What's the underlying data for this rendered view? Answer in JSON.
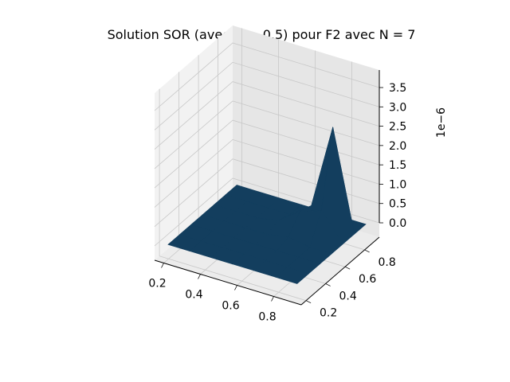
{
  "chart_data": {
    "type": "surface",
    "title": "Solution SOR (avec w = 0.5) pour F2 avec N = 7",
    "xlabel": "",
    "ylabel": "",
    "zlabel": "",
    "z_offset_label": "1e−6",
    "x_ticks": [
      "0.2",
      "0.4",
      "0.6",
      "0.8"
    ],
    "y_ticks": [
      "0.2",
      "0.4",
      "0.6",
      "0.8"
    ],
    "z_ticks": [
      "0.0",
      "0.5",
      "1.0",
      "1.5",
      "2.0",
      "2.5",
      "3.0",
      "3.5"
    ],
    "x": [
      0.125,
      0.25,
      0.375,
      0.5,
      0.625,
      0.75,
      0.875
    ],
    "y": [
      0.125,
      0.25,
      0.375,
      0.5,
      0.625,
      0.75,
      0.875
    ],
    "z": [
      [
        0,
        0,
        0,
        0,
        0,
        0,
        0
      ],
      [
        0,
        0,
        0,
        0,
        0,
        0,
        0
      ],
      [
        0,
        0,
        0,
        0,
        0,
        0,
        0
      ],
      [
        0,
        0,
        0,
        0,
        0.1,
        0,
        0
      ],
      [
        0,
        0,
        0,
        0.1,
        0.5,
        0.4,
        0
      ],
      [
        0,
        0,
        0,
        0,
        0.7,
        2.6,
        0
      ],
      [
        0,
        0,
        0,
        0,
        0,
        0,
        0
      ]
    ],
    "zlim": [
      0,
      3.8
    ],
    "surface_color": "#133e5e",
    "grid": true
  }
}
